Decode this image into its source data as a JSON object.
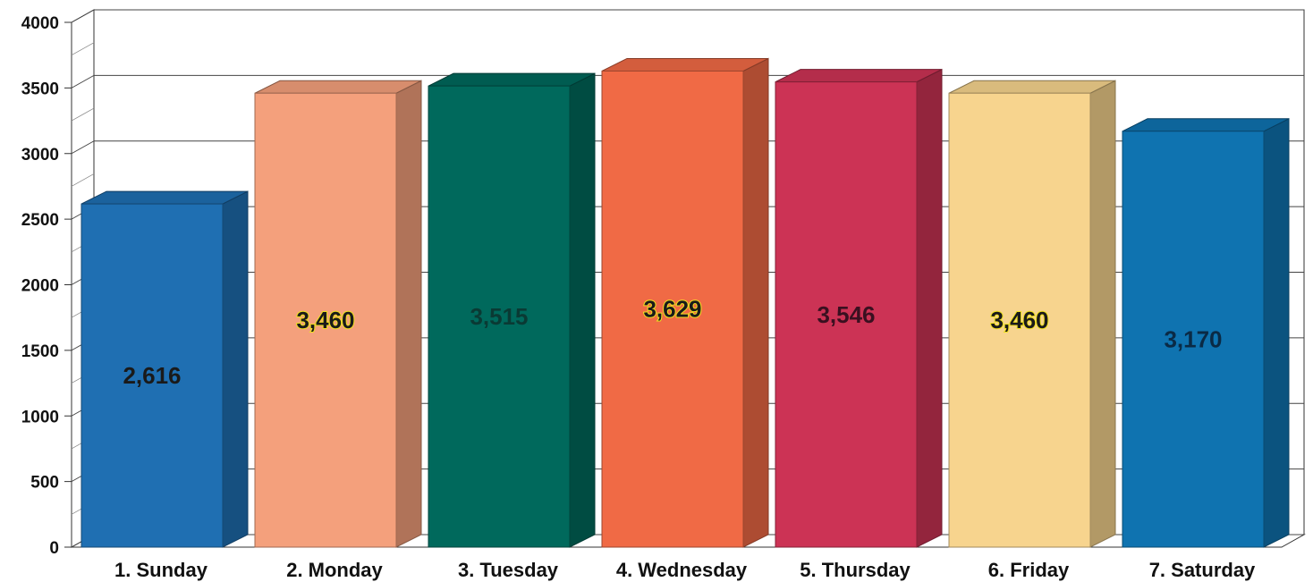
{
  "chart_data": {
    "type": "bar",
    "title": "",
    "xlabel": "",
    "ylabel": "",
    "ylim": [
      0,
      4000
    ],
    "yticks": [
      0,
      500,
      1000,
      1500,
      2000,
      2500,
      3000,
      3500,
      4000
    ],
    "grid": true,
    "categories": [
      "1. Sunday",
      "2. Monday",
      "3. Tuesday",
      "4. Wednesday",
      "5. Thursday",
      "6. Friday",
      "7. Saturday"
    ],
    "values": [
      2616,
      3460,
      3515,
      3629,
      3546,
      3460,
      3170
    ],
    "value_labels": [
      "2,616",
      "3,460",
      "3,515",
      "3,629",
      "3,546",
      "3,460",
      "3,170"
    ],
    "colors": [
      "#1f6fb2",
      "#f4a07c",
      "#00695c",
      "#f06a45",
      "#cc3355",
      "#f7d48e",
      "#0f73b0"
    ],
    "label_colors": [
      "#1a1a1a",
      "#1a1a1a",
      "#0a3a34",
      "#1a1a1a",
      "#3a1020",
      "#1a1a1a",
      "#0a2a45"
    ],
    "label_glow": [
      "#1f6fb2",
      "#f0e020",
      "#00695c",
      "#f0e020",
      "#cc3355",
      "#f0e020",
      "#0f73b0"
    ]
  }
}
